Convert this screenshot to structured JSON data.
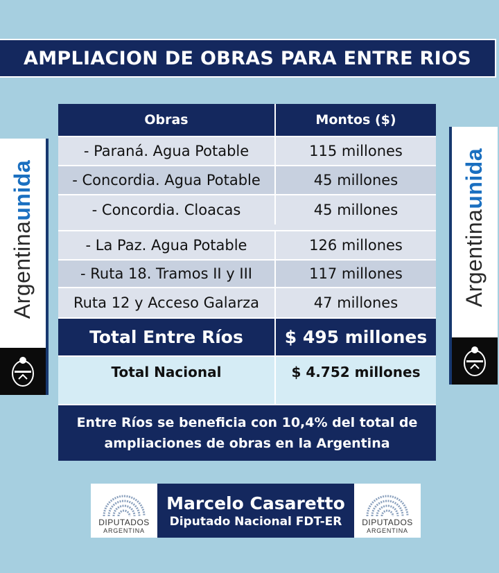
{
  "title": "AMPLIACION DE OBRAS PARA ENTRE RIOS",
  "banner": {
    "word1": "Argentina",
    "word2": "unida"
  },
  "table": {
    "headers": [
      "Obras",
      "Montos ($)"
    ],
    "rows": [
      {
        "obra": "- Paraná. Agua Potable",
        "monto": "115 millones"
      },
      {
        "obra": "- Concordia. Agua Potable",
        "monto": "45 millones"
      },
      {
        "obra": "- Concordia. Cloacas",
        "monto": "45 millones"
      },
      {
        "obra": "- La Paz. Agua Potable",
        "monto": "126 millones"
      },
      {
        "obra": "- Ruta 18. Tramos II y III",
        "monto": "117 millones"
      },
      {
        "obra": "Ruta 12 y Acceso Galarza",
        "monto": "47 millones"
      }
    ],
    "total_er": {
      "label": "Total Entre Ríos",
      "value": "$ 495 millones"
    },
    "total_nacional": {
      "label": "Total Nacional",
      "value": "$ 4.752 millones"
    },
    "footnote": "Entre Ríos se beneficia con 10,4% del total de ampliaciones de obras en la Argentina"
  },
  "signature": {
    "name": "Marcelo Casaretto",
    "role": "Diputado Nacional FDT-ER",
    "logo_line1": "DIPUTADOS",
    "logo_line2": "ARGENTINA"
  },
  "colors": {
    "navy": "#14285e",
    "background": "#a6cfe0",
    "brand_blue": "#1a6fc0"
  }
}
